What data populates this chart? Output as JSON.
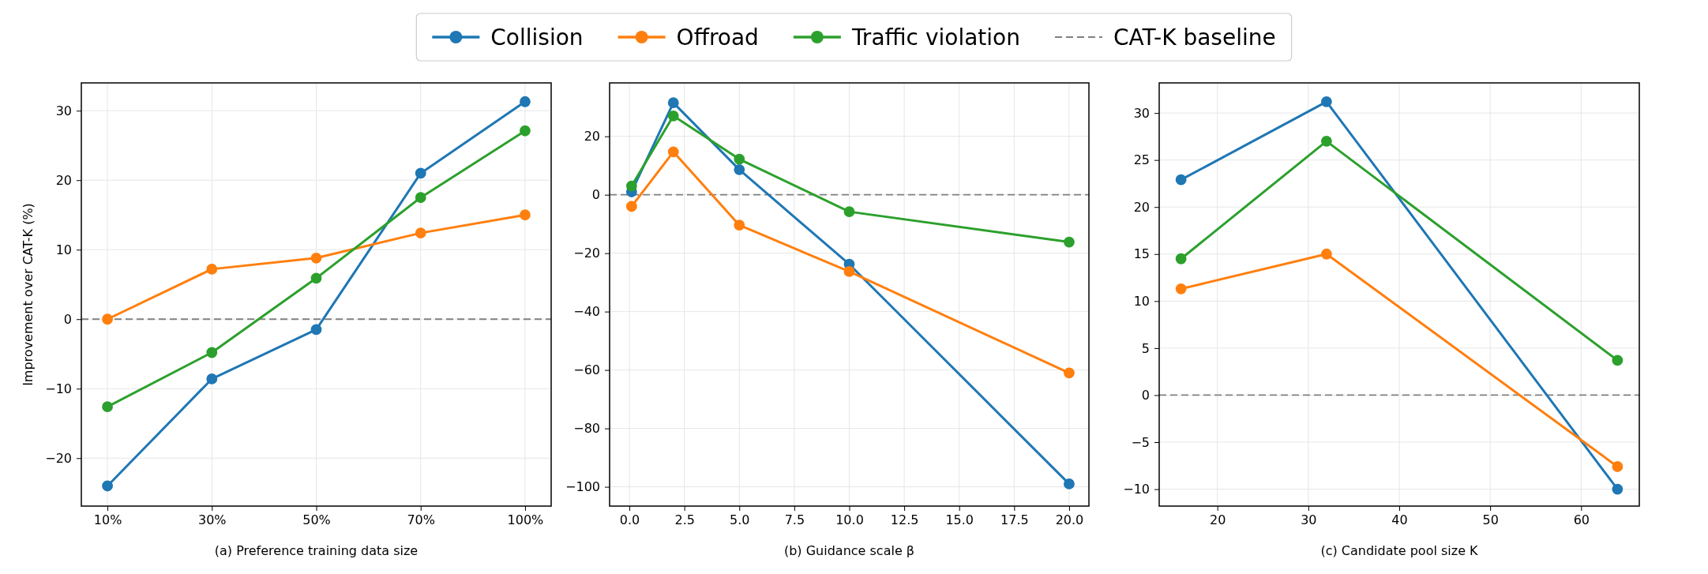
{
  "chart_data": [
    {
      "type": "line",
      "xlabel": "(a) Preference training data size",
      "ylabel": "Improvement over CAT-K (%)",
      "categories": [
        "10%",
        "30%",
        "50%",
        "70%",
        "100%"
      ],
      "ylim": [
        -26.9,
        34
      ],
      "yticks": [
        -20,
        -10,
        0,
        10,
        20,
        30
      ],
      "grid": true,
      "legend": "top",
      "marker": "circle",
      "line_style": "solid",
      "series": [
        {
          "name": "Collision",
          "color": "#1f77b4",
          "values": [
            -24.0,
            -8.6,
            -1.5,
            21.0,
            31.3
          ]
        },
        {
          "name": "Offroad",
          "color": "#ff7f0e",
          "values": [
            0,
            7.2,
            8.8,
            12.4,
            15.0
          ]
        },
        {
          "name": "Traffic violation",
          "color": "#2ca02c",
          "values": [
            -12.6,
            -4.8,
            5.9,
            17.5,
            27.1
          ]
        }
      ],
      "ref_lines": [
        {
          "axis": "y",
          "value": 0,
          "label": "CAT-K baseline",
          "color": "#808080",
          "line_style": "dashed"
        }
      ]
    },
    {
      "type": "line",
      "xlabel": "(b) Guidance scale β",
      "x": [
        0.1,
        2,
        5,
        10,
        20
      ],
      "xlim": [
        -0.9,
        20.9
      ],
      "xticks": [
        {
          "value": 0,
          "label": "0.0"
        },
        2.5,
        {
          "value": 5,
          "label": "5.0"
        },
        7.5,
        {
          "value": 10,
          "label": "10.0"
        },
        12.5,
        {
          "value": 15,
          "label": "15.0"
        },
        17.5,
        {
          "value": 20,
          "label": "20.0"
        }
      ],
      "ylim": [
        -106.6,
        38.3
      ],
      "yticks": [
        -100,
        -80,
        -60,
        -40,
        -20,
        0,
        20
      ],
      "grid": true,
      "marker": "circle",
      "line_style": "solid",
      "series": [
        {
          "color": "#1f77b4",
          "values": [
            1,
            31.5,
            8.6,
            -23.8,
            -99
          ]
        },
        {
          "color": "#ff7f0e",
          "values": [
            -4,
            14.7,
            -10.4,
            -26.3,
            -61
          ]
        },
        {
          "color": "#2ca02c",
          "values": [
            3,
            27,
            12.2,
            -5.8,
            -16.2
          ]
        }
      ],
      "ref_lines": [
        {
          "axis": "y",
          "value": 0,
          "color": "#808080",
          "line_style": "dashed"
        }
      ]
    },
    {
      "type": "line",
      "xlabel": "(c) Candidate pool size K",
      "x": [
        16,
        32,
        64
      ],
      "xlim": [
        13.6,
        66.4
      ],
      "xticks": [
        20,
        30,
        40,
        50,
        60
      ],
      "ylim": [
        -11.8,
        33.2
      ],
      "yticks": [
        -10,
        -5,
        0,
        5,
        10,
        15,
        20,
        25,
        30
      ],
      "grid": true,
      "marker": "circle",
      "line_style": "solid",
      "series": [
        {
          "color": "#1f77b4",
          "values": [
            22.9,
            31.2,
            -10
          ]
        },
        {
          "color": "#ff7f0e",
          "values": [
            11.3,
            15.0,
            -7.6
          ]
        },
        {
          "color": "#2ca02c",
          "values": [
            14.5,
            27.0,
            3.7
          ]
        }
      ],
      "ref_lines": [
        {
          "axis": "y",
          "value": 0,
          "color": "#808080",
          "line_style": "dashed"
        }
      ]
    }
  ]
}
